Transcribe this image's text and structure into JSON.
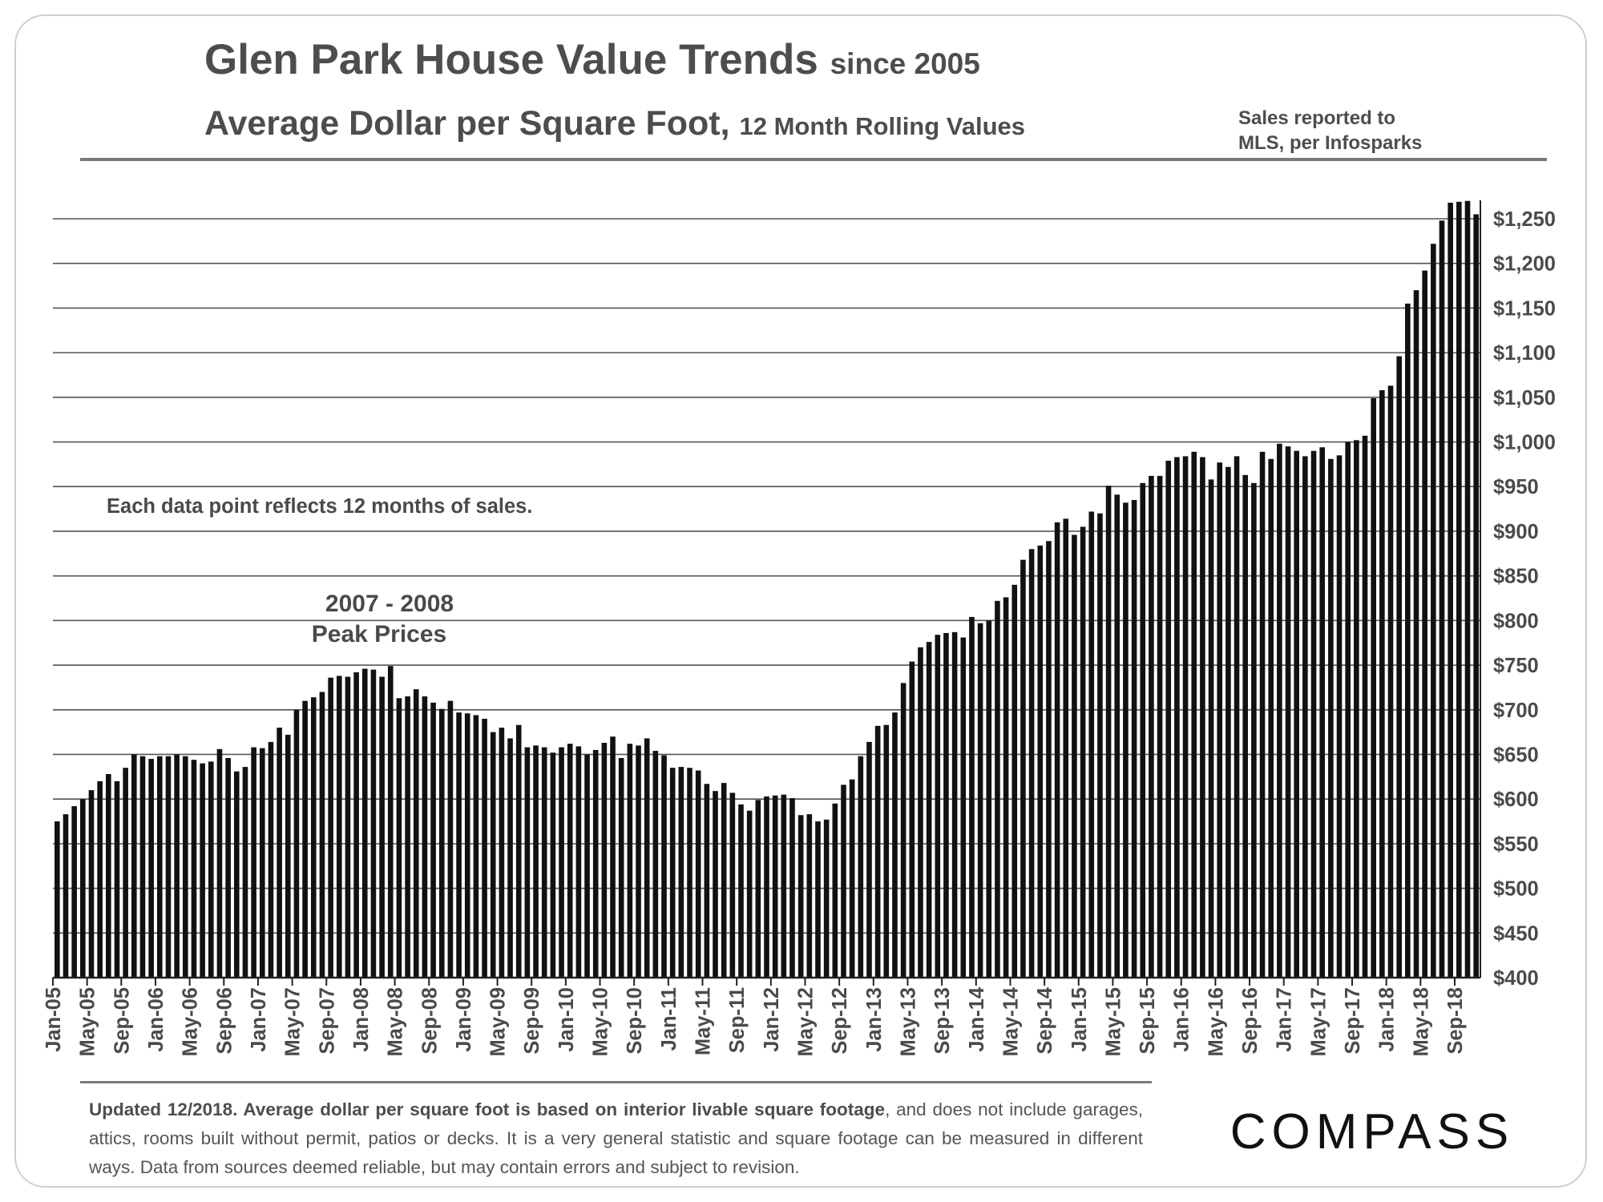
{
  "header": {
    "title": "Glen Park House Value Trends",
    "title_suffix": "since 2005",
    "subtitle": "Average Dollar per Square Foot,",
    "subtitle_suffix": "12 Month Rolling Values",
    "source_line1": "Sales reported to",
    "source_line2": "MLS, per Infosparks"
  },
  "annotations": {
    "note": "Each data point reflects 12 months of sales.",
    "peak_line1": "2007 - 2008",
    "peak_line2": "Peak Prices"
  },
  "footer": {
    "bold_text": "Updated 12/2018. Average dollar per square foot is based on interior livable square footage",
    "text": ", and does not include garages, attics, rooms built without permit, patios or decks. It is a very general statistic and square footage can be measured in different ways. Data from sources deemed reliable, but may contain errors and subject to revision.",
    "logo": "COMPASS"
  },
  "colors": {
    "bar": "#111111",
    "grid": "#555555",
    "text": "#4a4a4a"
  },
  "chart_data": {
    "type": "bar",
    "title": "Glen Park House Value Trends since 2005",
    "subtitle": "Average Dollar per Square Foot, 12 Month Rolling Values",
    "xlabel": "",
    "ylabel": "",
    "ylim": [
      400,
      1270
    ],
    "yticks": [
      400,
      450,
      500,
      550,
      600,
      650,
      700,
      750,
      800,
      850,
      900,
      950,
      1000,
      1050,
      1100,
      1150,
      1200,
      1250
    ],
    "ytick_labels": [
      "$400",
      "$450",
      "$500",
      "$550",
      "$600",
      "$650",
      "$700",
      "$750",
      "$800",
      "$850",
      "$900",
      "$950",
      "$1,000",
      "$1,050",
      "$1,100",
      "$1,150",
      "$1,200",
      "$1,250"
    ],
    "xtick_labels": [
      "Jan-05",
      "May-05",
      "Sep-05",
      "Jan-06",
      "May-06",
      "Sep-06",
      "Jan-07",
      "May-07",
      "Sep-07",
      "Jan-08",
      "May-08",
      "Sep-08",
      "Jan-09",
      "May-09",
      "Sep-09",
      "Jan-10",
      "May-10",
      "Sep-10",
      "Jan-11",
      "May-11",
      "Sep-11",
      "Jan-12",
      "May-12",
      "Sep-12",
      "Jan-13",
      "May-13",
      "Sep-13",
      "Jan-14",
      "May-14",
      "Sep-14",
      "Jan-15",
      "May-15",
      "Sep-15",
      "Jan-16",
      "May-16",
      "Sep-16",
      "Jan-17",
      "May-17",
      "Sep-17",
      "Jan-18",
      "May-18",
      "Sep-18"
    ],
    "start_month": "Jan-05",
    "grid": true,
    "legend": "none",
    "series": [
      {
        "name": "Average $/Sq.Ft. (12-month rolling)",
        "values": [
          575,
          583,
          592,
          600,
          610,
          620,
          628,
          620,
          635,
          650,
          648,
          645,
          648,
          648,
          650,
          648,
          644,
          640,
          642,
          656,
          646,
          631,
          636,
          658,
          657,
          664,
          680,
          672,
          700,
          710,
          714,
          720,
          736,
          738,
          737,
          742,
          746,
          745,
          737,
          749,
          713,
          715,
          723,
          715,
          708,
          701,
          710,
          697,
          696,
          694,
          690,
          675,
          680,
          668,
          683,
          658,
          660,
          658,
          652,
          658,
          662,
          659,
          650,
          655,
          663,
          670,
          646,
          662,
          660,
          668,
          654,
          649,
          635,
          636,
          635,
          632,
          617,
          609,
          618,
          607,
          594,
          587,
          599,
          603,
          604,
          605,
          601,
          582,
          583,
          575,
          577,
          595,
          616,
          622,
          648,
          664,
          682,
          683,
          697,
          730,
          754,
          770,
          776,
          784,
          786,
          787,
          781,
          804,
          797,
          800,
          822,
          826,
          840,
          868,
          880,
          884,
          889,
          910,
          914,
          896,
          905,
          922,
          920,
          951,
          941,
          932,
          935,
          954,
          962,
          962,
          979,
          983,
          984,
          989,
          983,
          958,
          977,
          972,
          984,
          963,
          954,
          989,
          981,
          998,
          995,
          990,
          984,
          990,
          994,
          981,
          985,
          1000,
          1002,
          1007,
          1049,
          1058,
          1063,
          1096,
          1155,
          1170,
          1192,
          1222,
          1248,
          1268,
          1269,
          1270,
          1255
        ]
      }
    ]
  }
}
